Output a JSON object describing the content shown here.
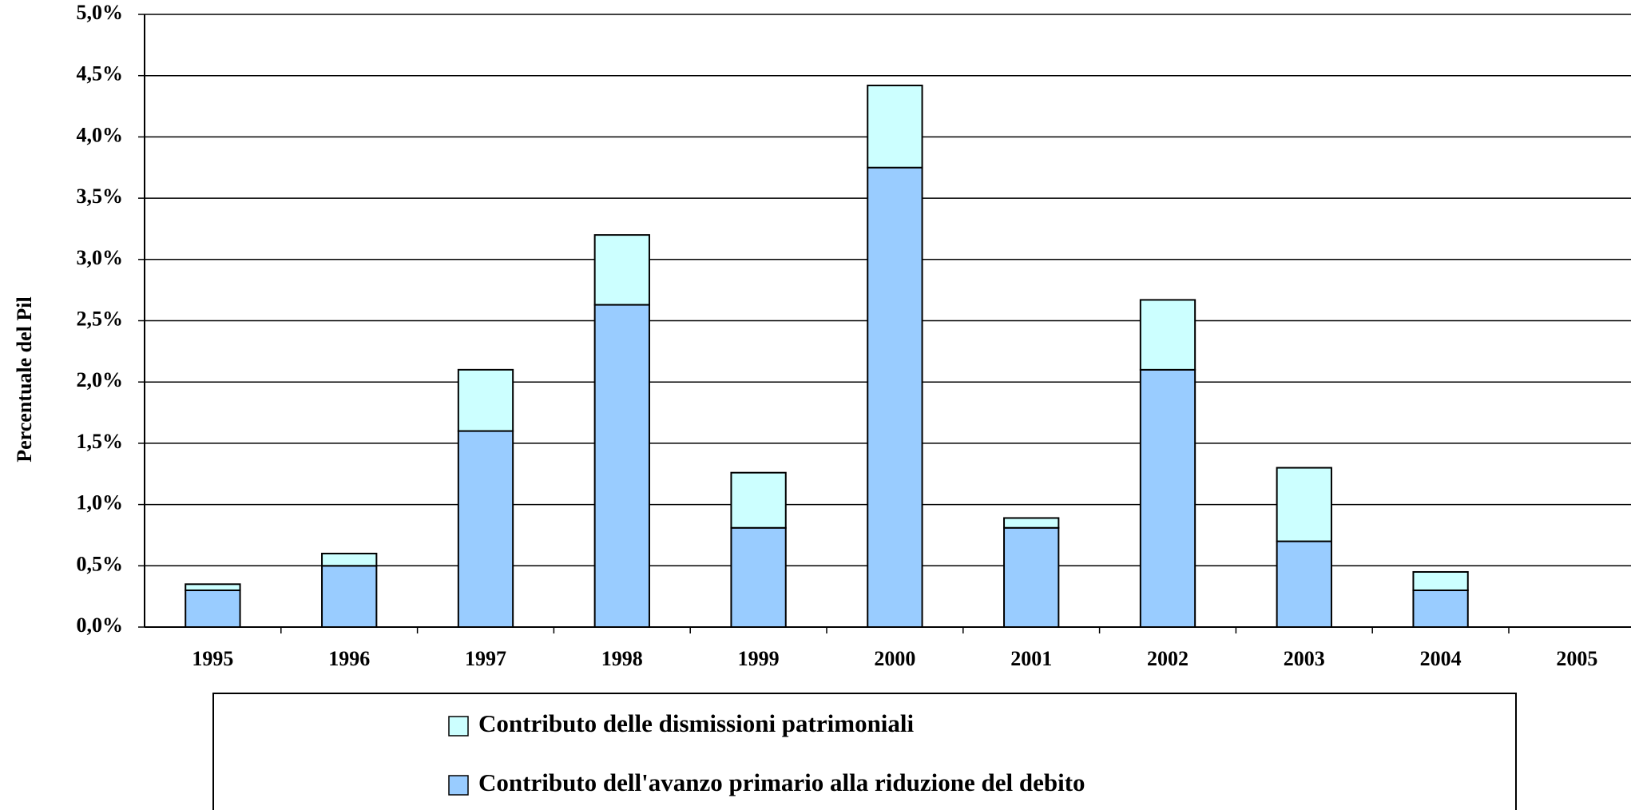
{
  "chart_data": {
    "type": "bar",
    "stacked": true,
    "y_label": "Percentuale del Pil",
    "categories": [
      "1995",
      "1996",
      "1997",
      "1998",
      "1999",
      "2000",
      "2001",
      "2002",
      "2003",
      "2004",
      "2005"
    ],
    "series": [
      {
        "name": "Contributo delle dismissioni patrimoniali",
        "color": "#ccffff",
        "values": [
          0.05,
          0.1,
          0.5,
          0.57,
          0.45,
          0.67,
          0.08,
          0.57,
          0.6,
          0.15,
          null
        ]
      },
      {
        "name": "Contributo dell'avanzo primario alla riduzione del debito",
        "color": "#99ccff",
        "values": [
          0.3,
          0.5,
          1.6,
          2.63,
          0.81,
          3.75,
          0.81,
          2.1,
          0.7,
          0.3,
          null
        ]
      }
    ],
    "ylim": [
      0,
      5
    ],
    "yticks": [
      {
        "value": 0,
        "label": "0,0%"
      },
      {
        "value": 0.5,
        "label": "0,5%"
      },
      {
        "value": 1,
        "label": "1,0%"
      },
      {
        "value": 1.5,
        "label": "1,5%"
      },
      {
        "value": 2,
        "label": "2,0%"
      },
      {
        "value": 2.5,
        "label": "2,5%"
      },
      {
        "value": 3,
        "label": "3,0%"
      },
      {
        "value": 3.5,
        "label": "3,5%"
      },
      {
        "value": 4,
        "label": "4,0%"
      },
      {
        "value": 4.5,
        "label": "4,5%"
      },
      {
        "value": 5,
        "label": "5,0%"
      }
    ],
    "grid": true,
    "legend": "bottom"
  }
}
